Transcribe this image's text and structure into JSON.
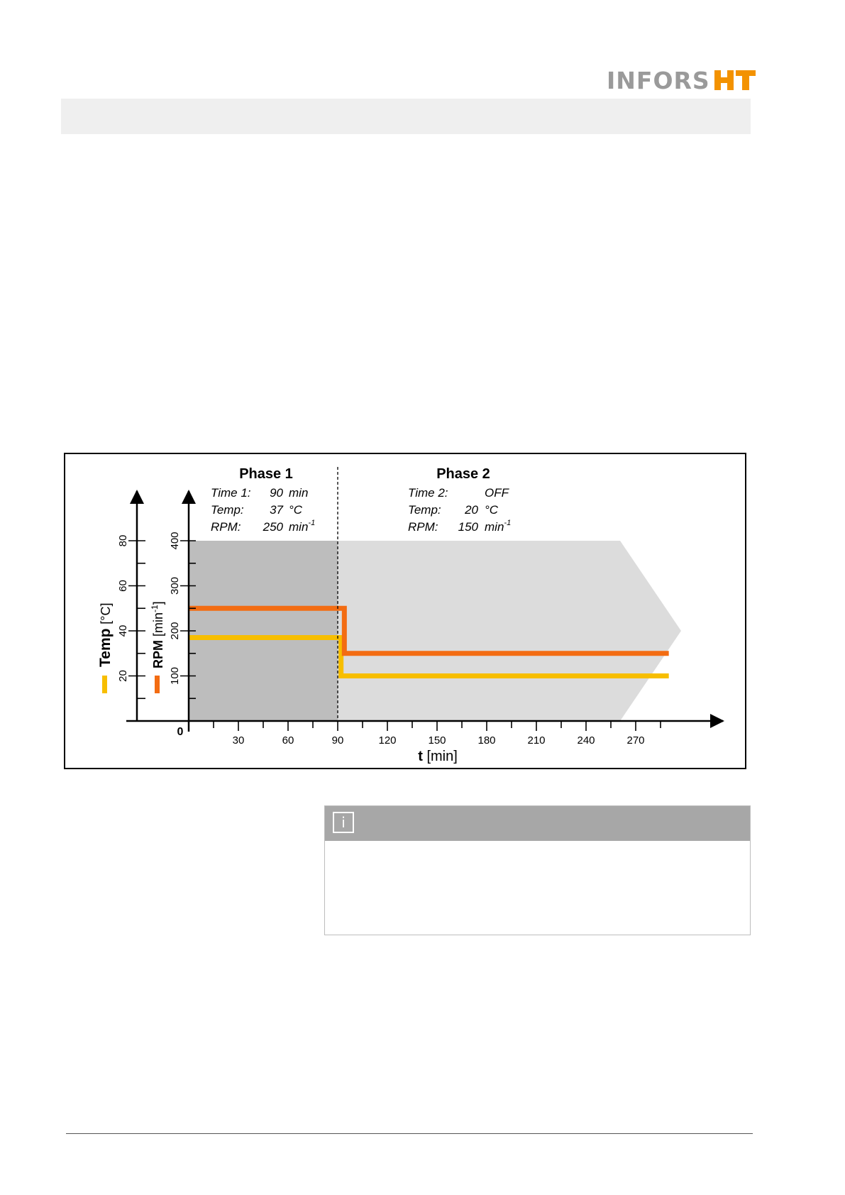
{
  "brand": {
    "text": "INFORS",
    "mark": "HT",
    "color_text": "#9a9a9a",
    "color_mark": "#f39200"
  },
  "info_box": {
    "icon": "info-icon",
    "icon_glyph": "i"
  },
  "chart_data": {
    "type": "line",
    "x_label_bold": "t",
    "x_label_unit": "[min]",
    "x_ticks": [
      30,
      60,
      90,
      120,
      150,
      180,
      210,
      240,
      270
    ],
    "x_range": [
      0,
      300
    ],
    "origin_label": "0",
    "y_temp": {
      "label_bold": "Temp",
      "label_unit": "[°C]",
      "ticks": [
        20,
        40,
        60,
        80
      ],
      "range": [
        0,
        80
      ]
    },
    "y_rpm": {
      "label_bold": "RPM",
      "label_unit": "[min",
      "label_sup": "-1",
      "label_close": "]",
      "ticks": [
        100,
        200,
        300,
        400
      ],
      "range": [
        0,
        400
      ]
    },
    "phases": [
      {
        "title": "Phase 1",
        "rows": [
          {
            "label": "Time 1:",
            "value": "90",
            "unit": "min",
            "sup": ""
          },
          {
            "label": "Temp:",
            "value": "37",
            "unit": "°C",
            "sup": ""
          },
          {
            "label": "RPM:",
            "value": "250",
            "unit": "min",
            "sup": "-1"
          }
        ]
      },
      {
        "title": "Phase 2",
        "rows": [
          {
            "label": "Time 2:",
            "value": "OFF",
            "unit": "",
            "sup": ""
          },
          {
            "label": "Temp:",
            "value": "20",
            "unit": "°C",
            "sup": ""
          },
          {
            "label": "RPM:",
            "value": "150",
            "unit": "min",
            "sup": "-1"
          }
        ]
      }
    ],
    "phase_boundary_x": 90,
    "series": [
      {
        "key": "temp",
        "color": "#f7be00",
        "axis": "temp",
        "points": [
          [
            0,
            37
          ],
          [
            92,
            37
          ],
          [
            92,
            20
          ],
          [
            290,
            20
          ]
        ]
      },
      {
        "key": "rpm",
        "color": "#f36c12",
        "axis": "rpm",
        "points": [
          [
            0,
            250
          ],
          [
            94,
            250
          ],
          [
            94,
            150
          ],
          [
            290,
            150
          ]
        ]
      }
    ],
    "colors": {
      "phase1_bg": "#bdbdbd",
      "phase2_bg": "#dcdcdc"
    },
    "grid": false
  }
}
